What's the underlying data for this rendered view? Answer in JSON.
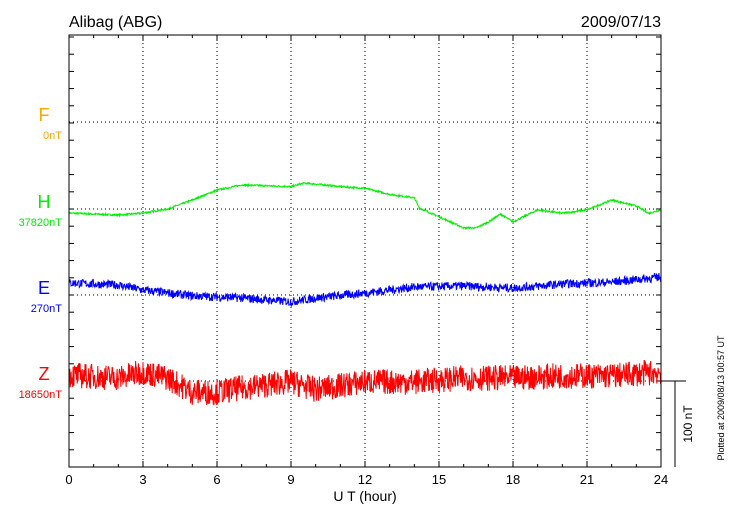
{
  "chart_data": {
    "type": "line",
    "title": "Alibag (ABG)",
    "date": "2009/07/13",
    "xlabel": "U T (hour)",
    "xlim": [
      0,
      24
    ],
    "xticks": [
      "0",
      "3",
      "6",
      "9",
      "12",
      "15",
      "18",
      "21",
      "24"
    ],
    "grid": true,
    "scale_label": "100 nT",
    "scale_nT": 100,
    "footer": "Plotted at 2009/08/13 00:57 UT",
    "series": [
      {
        "name": "F",
        "baseline_label": "0nT",
        "color": "#ffa500",
        "points": []
      },
      {
        "name": "H",
        "baseline_label": "37820nT",
        "color": "#00ee00",
        "noise_nT": 1,
        "points": [
          [
            0,
            -4.7
          ],
          [
            2,
            -7
          ],
          [
            3,
            -4.7
          ],
          [
            4,
            0
          ],
          [
            5,
            10.5
          ],
          [
            6,
            22
          ],
          [
            7,
            28
          ],
          [
            8,
            27
          ],
          [
            9,
            26
          ],
          [
            9.5,
            30
          ],
          [
            10,
            29
          ],
          [
            11,
            26
          ],
          [
            12,
            24
          ],
          [
            13,
            17
          ],
          [
            14,
            13
          ],
          [
            14.2,
            1
          ],
          [
            15,
            -9
          ],
          [
            16,
            -22
          ],
          [
            16.5,
            -22
          ],
          [
            17,
            -15
          ],
          [
            17.5,
            -6
          ],
          [
            18,
            -15
          ],
          [
            18.5,
            -8
          ],
          [
            19,
            -1
          ],
          [
            20,
            -5
          ],
          [
            21,
            -1
          ],
          [
            22,
            10.5
          ],
          [
            23,
            3.5
          ],
          [
            23.5,
            -5
          ],
          [
            24,
            -1
          ]
        ]
      },
      {
        "name": "E",
        "baseline_label": "270nT",
        "color": "#0000ff",
        "noise_nT": 5,
        "points": [
          [
            0,
            14
          ],
          [
            2,
            11.6
          ],
          [
            3,
            5.8
          ],
          [
            5,
            -1
          ],
          [
            7,
            -3.5
          ],
          [
            9,
            -8
          ],
          [
            10,
            -3.5
          ],
          [
            12,
            2.3
          ],
          [
            14,
            9.3
          ],
          [
            16,
            10.5
          ],
          [
            18,
            8
          ],
          [
            20,
            12.8
          ],
          [
            22,
            15
          ],
          [
            24,
            21
          ]
        ]
      },
      {
        "name": "Z",
        "baseline_label": "18650nT",
        "color": "#ff0000",
        "noise_nT": 15,
        "points": [
          [
            0,
            7
          ],
          [
            2,
            3.5
          ],
          [
            3,
            10.5
          ],
          [
            4,
            3.5
          ],
          [
            5,
            -13
          ],
          [
            6,
            -13
          ],
          [
            7,
            -8
          ],
          [
            9,
            -1
          ],
          [
            10,
            -10
          ],
          [
            12,
            -1
          ],
          [
            14,
            -1
          ],
          [
            16,
            3.5
          ],
          [
            18,
            3.5
          ],
          [
            20,
            6
          ],
          [
            22,
            6
          ],
          [
            24,
            10.5
          ]
        ]
      }
    ]
  }
}
